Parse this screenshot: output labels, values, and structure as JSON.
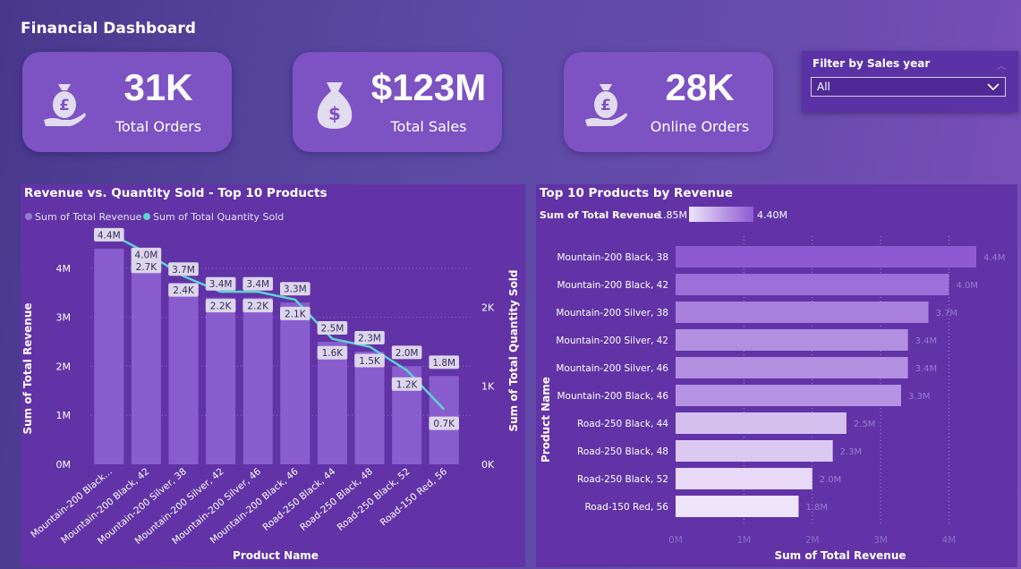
{
  "header": {
    "title": "Financial Dashboard"
  },
  "kpis": [
    {
      "value": "31K",
      "label": "Total Orders",
      "icon": "pound-bag-hand-icon"
    },
    {
      "value": "$123M",
      "label": "Total Sales",
      "icon": "dollar-bag-icon"
    },
    {
      "value": "28K",
      "label": "Online Orders",
      "icon": "pound-bag-hand-icon"
    }
  ],
  "filter": {
    "title": "Filter by Sales year",
    "selected": "All"
  },
  "colors": {
    "bar": "#8a5dcf",
    "line": "#5fd2d3",
    "label_bg": "#dcd6ec"
  },
  "chart_data": [
    {
      "type": "bar",
      "title": "Revenue vs. Quantity Sold - Top 10 Products",
      "legend": [
        "Sum of Total Revenue",
        "Sum of Total Quantity Sold"
      ],
      "xlabel": "Product Name",
      "ylabel": "Sum of Total Revenue",
      "y2label": "Sum of Total Quantity Sold",
      "categories": [
        "Mountain-200 Black...",
        "Mountain-200 Black, 42",
        "Mountain-200 Silver, 38",
        "Mountain-200 Silver, 42",
        "Mountain-200 Silver, 46",
        "Mountain-200 Black, 46",
        "Road-250 Black, 44",
        "Road-250 Black, 48",
        "Road-250 Black, 52",
        "Road-150 Red, 56"
      ],
      "ylim": [
        0,
        4.8
      ],
      "yticks": [
        "0M",
        "1M",
        "2M",
        "3M",
        "4M"
      ],
      "y2lim": [
        0,
        3.0
      ],
      "y2ticks": [
        "0K",
        "1K",
        "2K"
      ],
      "series": [
        {
          "name": "Sum of Total Revenue",
          "kind": "bar",
          "values": [
            4.4,
            4.0,
            3.7,
            3.4,
            3.4,
            3.3,
            2.5,
            2.3,
            2.0,
            1.8
          ],
          "labels": [
            "4.4M",
            "4.0M",
            "3.7M",
            "3.4M",
            "3.4M",
            "3.3M",
            "2.5M",
            "2.3M",
            "2.0M",
            "1.8M"
          ]
        },
        {
          "name": "Sum of Total Quantity Sold",
          "kind": "line",
          "values": [
            2.95,
            2.7,
            2.4,
            2.2,
            2.2,
            2.1,
            1.6,
            1.5,
            1.2,
            0.7
          ],
          "labels": [
            "",
            "2.7K",
            "2.4K",
            "2.2K",
            "2.2K",
            "2.1K",
            "1.6K",
            "1.5K",
            "1.2K",
            "0.7K"
          ]
        }
      ]
    },
    {
      "type": "bar",
      "orientation": "horizontal",
      "title": "Top 10 Products by Revenue",
      "legend": {
        "title": "Sum of Total Revenue",
        "min": "1.85M",
        "max": "4.40M"
      },
      "xlabel": "Sum of Total Revenue",
      "ylabel": "Product Name",
      "categories": [
        "Mountain-200 Black, 38",
        "Mountain-200 Black, 42",
        "Mountain-200 Silver, 38",
        "Mountain-200 Silver, 42",
        "Mountain-200 Silver, 46",
        "Mountain-200 Black, 46",
        "Road-250 Black, 44",
        "Road-250 Black, 48",
        "Road-250 Black, 52",
        "Road-150 Red, 56"
      ],
      "values": [
        4.4,
        4.0,
        3.7,
        3.4,
        3.4,
        3.3,
        2.5,
        2.3,
        2.0,
        1.8
      ],
      "labels": [
        "4.4M",
        "4.0M",
        "3.7M",
        "3.4M",
        "3.4M",
        "3.3M",
        "2.5M",
        "2.3M",
        "2.0M",
        "1.8M"
      ],
      "xlim": [
        0,
        4.4
      ],
      "xticks": [
        "0M",
        "1M",
        "2M",
        "3M",
        "4M"
      ],
      "color_low": "#eee4fa",
      "color_high": "#8e5ad2"
    }
  ]
}
